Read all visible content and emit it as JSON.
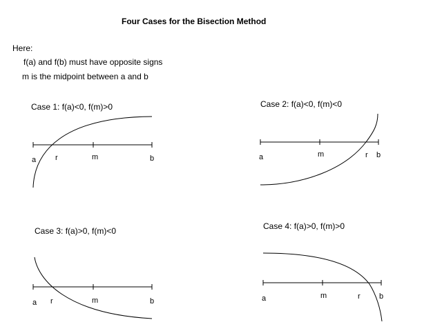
{
  "title": "Four Cases for the Bisection Method",
  "notes": {
    "heading": "Here:",
    "line1": "f(a) and f(b) must have opposite signs",
    "line2": "m is the midpoint between a and b"
  },
  "cases": [
    {
      "title": "Case 1:  f(a)<0, f(m)>0",
      "labels": {
        "a": "a",
        "r": "r",
        "m": "m",
        "b": "b"
      }
    },
    {
      "title": "Case 2:  f(a)<0, f(m)<0",
      "labels": {
        "a": "a",
        "m": "m",
        "r": "r",
        "b": "b"
      }
    },
    {
      "title": "Case 3:  f(a)>0, f(m)<0",
      "labels": {
        "a": "a",
        "r": "r",
        "m": "m",
        "b": "b"
      }
    },
    {
      "title": "Case 4:  f(a)>0, f(m)>0",
      "labels": {
        "a": "a",
        "m": "m",
        "r": "r",
        "b": "b"
      }
    }
  ]
}
